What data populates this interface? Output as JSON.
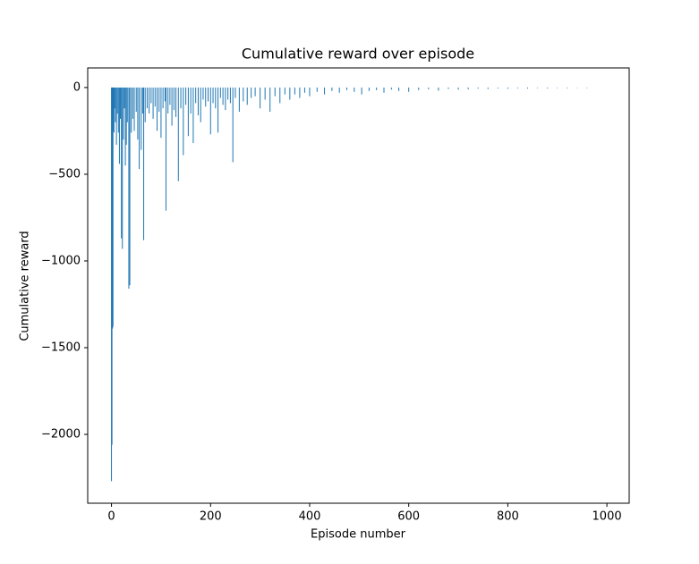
{
  "chart_data": {
    "type": "bar",
    "title": "Cumulative reward over episode",
    "xlabel": "Episode number",
    "ylabel": "Cumulative reward",
    "color": "#1f77b4",
    "xlim": [
      -48,
      1045
    ],
    "ylim": [
      -2397,
      113
    ],
    "xticks": [
      0,
      200,
      400,
      600,
      800,
      1000
    ],
    "yticks": [
      {
        "value": -2000,
        "label": "−2000"
      },
      {
        "value": -1500,
        "label": "−1500"
      },
      {
        "value": -1000,
        "label": "−1000"
      },
      {
        "value": -500,
        "label": "−500"
      },
      0
    ],
    "x": [
      0,
      1,
      2,
      3,
      4,
      5,
      6,
      8,
      10,
      12,
      14,
      16,
      18,
      20,
      22,
      24,
      26,
      28,
      30,
      32,
      35,
      37,
      40,
      43,
      46,
      50,
      53,
      56,
      60,
      63,
      65,
      68,
      72,
      76,
      80,
      84,
      88,
      92,
      96,
      100,
      104,
      108,
      110,
      114,
      118,
      122,
      126,
      130,
      135,
      140,
      145,
      150,
      155,
      160,
      165,
      170,
      175,
      180,
      185,
      190,
      195,
      200,
      205,
      210,
      215,
      220,
      225,
      230,
      235,
      240,
      245,
      250,
      258,
      266,
      274,
      282,
      290,
      300,
      310,
      320,
      330,
      340,
      350,
      360,
      370,
      380,
      390,
      400,
      415,
      430,
      445,
      460,
      475,
      490,
      505,
      520,
      535,
      550,
      565,
      580,
      600,
      620,
      640,
      660,
      680,
      700,
      720,
      740,
      760,
      780,
      800,
      820,
      840,
      860,
      880,
      900,
      920,
      940,
      960
    ],
    "values": [
      -2270,
      -2060,
      -1390,
      -1380,
      -250,
      -260,
      -120,
      -200,
      -330,
      -150,
      -260,
      -440,
      -180,
      -870,
      -930,
      -300,
      -120,
      -450,
      -330,
      -200,
      -1160,
      -1140,
      -260,
      -180,
      -250,
      -140,
      -300,
      -470,
      -360,
      -150,
      -880,
      -200,
      -120,
      -150,
      -90,
      -180,
      -110,
      -250,
      -140,
      -290,
      -120,
      -80,
      -710,
      -150,
      -100,
      -220,
      -130,
      -170,
      -540,
      -120,
      -390,
      -100,
      -280,
      -150,
      -320,
      -90,
      -160,
      -200,
      -70,
      -110,
      -80,
      -270,
      -90,
      -120,
      -260,
      -60,
      -100,
      -130,
      -70,
      -90,
      -430,
      -60,
      -140,
      -80,
      -100,
      -60,
      -50,
      -120,
      -70,
      -140,
      -50,
      -90,
      -40,
      -70,
      -40,
      -60,
      -30,
      -50,
      -25,
      -40,
      -20,
      -30,
      -15,
      -25,
      -40,
      -20,
      -15,
      -30,
      -12,
      -20,
      -25,
      -15,
      -10,
      -18,
      -8,
      -12,
      -10,
      -6,
      -8,
      -5,
      -7,
      -4,
      -6,
      -3,
      -5,
      -3,
      -4,
      -2,
      -3
    ]
  }
}
